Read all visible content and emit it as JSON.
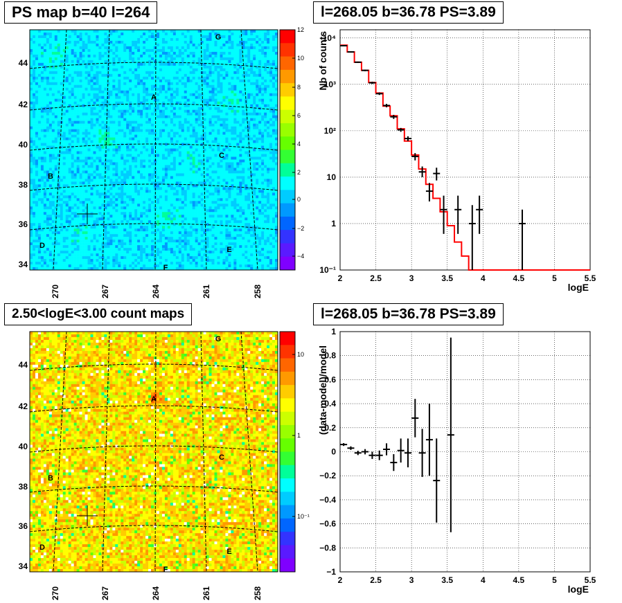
{
  "chart_data": [
    {
      "type": "heatmap",
      "title": "PS map b=40 l=264",
      "x_tick_labels": [
        "270",
        "267",
        "264",
        "261",
        "258"
      ],
      "y_tick_labels": [
        "44",
        "42",
        "40",
        "38",
        "36",
        "34"
      ],
      "colorbar_labels": [
        "12",
        "10",
        "8",
        "6",
        "4",
        "2",
        "0",
        "−2",
        "−4"
      ],
      "colorbar_range": [
        -5,
        12
      ],
      "source_labels": [
        "A",
        "B",
        "C",
        "D",
        "E",
        "F",
        "G"
      ],
      "marker": "cross at l=268.05 b=36.78"
    },
    {
      "type": "line",
      "title": "l=268.05 b=36.78 PS=3.89",
      "xlabel": "logE",
      "ylabel": "Nb of counts",
      "yscale": "log",
      "xlim": [
        2,
        5.5
      ],
      "ylim": [
        0.1,
        15000
      ],
      "x_tick_labels": [
        "2",
        "2.5",
        "3",
        "3.5",
        "4",
        "4.5",
        "5",
        "5.5"
      ],
      "y_tick_labels": [
        "10⁻¹",
        "1",
        "10",
        "10²",
        "10³",
        "10⁴"
      ],
      "grid": true,
      "series": [
        {
          "kind": "model-step",
          "color": "#ff0000",
          "edges": [
            2.0,
            2.1,
            2.2,
            2.3,
            2.4,
            2.5,
            2.6,
            2.7,
            2.8,
            2.9,
            3.0,
            3.1,
            3.2,
            3.3,
            3.4,
            3.5,
            3.6,
            3.7,
            3.8,
            3.9,
            4.0,
            4.1,
            4.2,
            4.3,
            4.4,
            4.5,
            4.6,
            4.7,
            4.8,
            4.9,
            5.0,
            5.1,
            5.2,
            5.3,
            5.4,
            5.5
          ],
          "values": [
            7000,
            5000,
            3000,
            2000,
            1100,
            650,
            340,
            210,
            110,
            60,
            30,
            15,
            7,
            3.5,
            1.8,
            0.9,
            0.4,
            0.2,
            0.1,
            0.1,
            0.1,
            0.1,
            0.1,
            0.1,
            0.1,
            0.1,
            0.1,
            0.1,
            0.1,
            0.1,
            0.1,
            0.1,
            0.1,
            0.1,
            0.1
          ]
        },
        {
          "kind": "data-points",
          "color": "#000000",
          "points": [
            {
              "x": 2.05,
              "y": 6800,
              "lo": 6600,
              "hi": 7000
            },
            {
              "x": 2.15,
              "y": 5000,
              "lo": 4850,
              "hi": 5150
            },
            {
              "x": 2.25,
              "y": 3000,
              "lo": 2900,
              "hi": 3100
            },
            {
              "x": 2.35,
              "y": 2000,
              "lo": 1920,
              "hi": 2080
            },
            {
              "x": 2.45,
              "y": 1080,
              "lo": 1020,
              "hi": 1140
            },
            {
              "x": 2.55,
              "y": 630,
              "lo": 590,
              "hi": 670
            },
            {
              "x": 2.65,
              "y": 350,
              "lo": 320,
              "hi": 380
            },
            {
              "x": 2.75,
              "y": 200,
              "lo": 180,
              "hi": 220
            },
            {
              "x": 2.85,
              "y": 105,
              "lo": 95,
              "hi": 115
            },
            {
              "x": 2.95,
              "y": 68,
              "lo": 60,
              "hi": 76
            },
            {
              "x": 3.05,
              "y": 28,
              "lo": 23,
              "hi": 33
            },
            {
              "x": 3.15,
              "y": 13,
              "lo": 10,
              "hi": 17
            },
            {
              "x": 3.25,
              "y": 5,
              "lo": 3,
              "hi": 7.5
            },
            {
              "x": 3.35,
              "y": 12,
              "lo": 8.5,
              "hi": 16
            },
            {
              "x": 3.45,
              "y": 2,
              "lo": 0.6,
              "hi": 4
            },
            {
              "x": 3.65,
              "y": 2,
              "lo": 0.6,
              "hi": 4
            },
            {
              "x": 3.85,
              "y": 1,
              "lo": 0.1,
              "hi": 2.5
            },
            {
              "x": 3.95,
              "y": 2,
              "lo": 0.6,
              "hi": 4
            },
            {
              "x": 4.55,
              "y": 1,
              "lo": 0.1,
              "hi": 2
            }
          ]
        }
      ]
    },
    {
      "type": "heatmap",
      "title": "2.50<logE<3.00 count maps",
      "x_tick_labels": [
        "270",
        "267",
        "264",
        "261",
        "258"
      ],
      "y_tick_labels": [
        "44",
        "42",
        "40",
        "38",
        "36",
        "34"
      ],
      "colorbar_labels": [
        "10",
        "1",
        "10⁻¹"
      ],
      "colorbar_scale": "log",
      "source_labels": [
        "A",
        "B",
        "C",
        "D",
        "E",
        "F",
        "G"
      ],
      "marker": "cross at l=268.05 b=36.78"
    },
    {
      "type": "scatter",
      "title": "l=268.05 b=36.78 PS=3.89",
      "xlabel": "logE",
      "ylabel": "(data-model)/model",
      "xlim": [
        2,
        5.5
      ],
      "ylim": [
        -1,
        1
      ],
      "x_tick_labels": [
        "2",
        "2.5",
        "3",
        "3.5",
        "4",
        "4.5",
        "5",
        "5.5"
      ],
      "y_tick_labels": [
        "1",
        "0.8",
        "0.6",
        "0.4",
        "0.2",
        "0",
        "−0.2",
        "−0.4",
        "−0.6",
        "−0.8",
        "−1"
      ],
      "grid": true,
      "points": [
        {
          "x": 2.05,
          "y": 0.06,
          "err": 0.012
        },
        {
          "x": 2.15,
          "y": 0.03,
          "err": 0.015
        },
        {
          "x": 2.25,
          "y": -0.01,
          "err": 0.018
        },
        {
          "x": 2.35,
          "y": 0.0,
          "err": 0.022
        },
        {
          "x": 2.45,
          "y": -0.03,
          "err": 0.03
        },
        {
          "x": 2.55,
          "y": -0.03,
          "err": 0.04
        },
        {
          "x": 2.65,
          "y": 0.02,
          "err": 0.05
        },
        {
          "x": 2.75,
          "y": -0.09,
          "err": 0.07
        },
        {
          "x": 2.85,
          "y": 0.01,
          "err": 0.1
        },
        {
          "x": 2.95,
          "y": -0.01,
          "err": 0.12
        },
        {
          "x": 3.05,
          "y": 0.28,
          "err": 0.16
        },
        {
          "x": 3.15,
          "y": -0.01,
          "err": 0.2
        },
        {
          "x": 3.25,
          "y": 0.1,
          "err": 0.3
        },
        {
          "x": 3.35,
          "y": -0.24,
          "err": 0.35
        },
        {
          "x": 3.55,
          "y": 0.14,
          "err": 0.81
        }
      ]
    }
  ]
}
